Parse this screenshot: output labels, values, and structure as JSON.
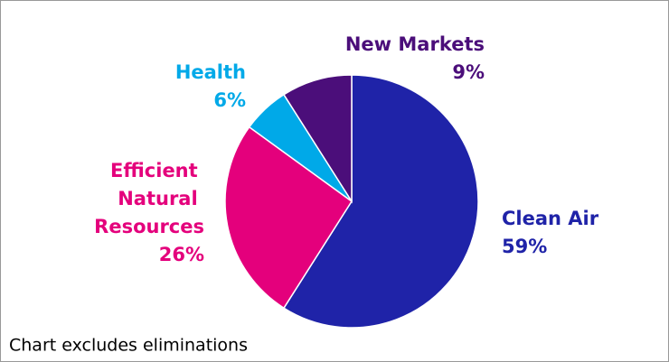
{
  "chart_data": {
    "type": "pie",
    "categories": [
      "Clean Air",
      "Efficient Natural Resources",
      "Health",
      "New Markets"
    ],
    "values": [
      59,
      26,
      6,
      9
    ],
    "value_labels": [
      "59%",
      "26%",
      "6%",
      "9%"
    ],
    "colors": [
      "#1f23a8",
      "#e4007c",
      "#00a9e8",
      "#4b0e7a"
    ],
    "note": "Chart excludes eliminations"
  }
}
